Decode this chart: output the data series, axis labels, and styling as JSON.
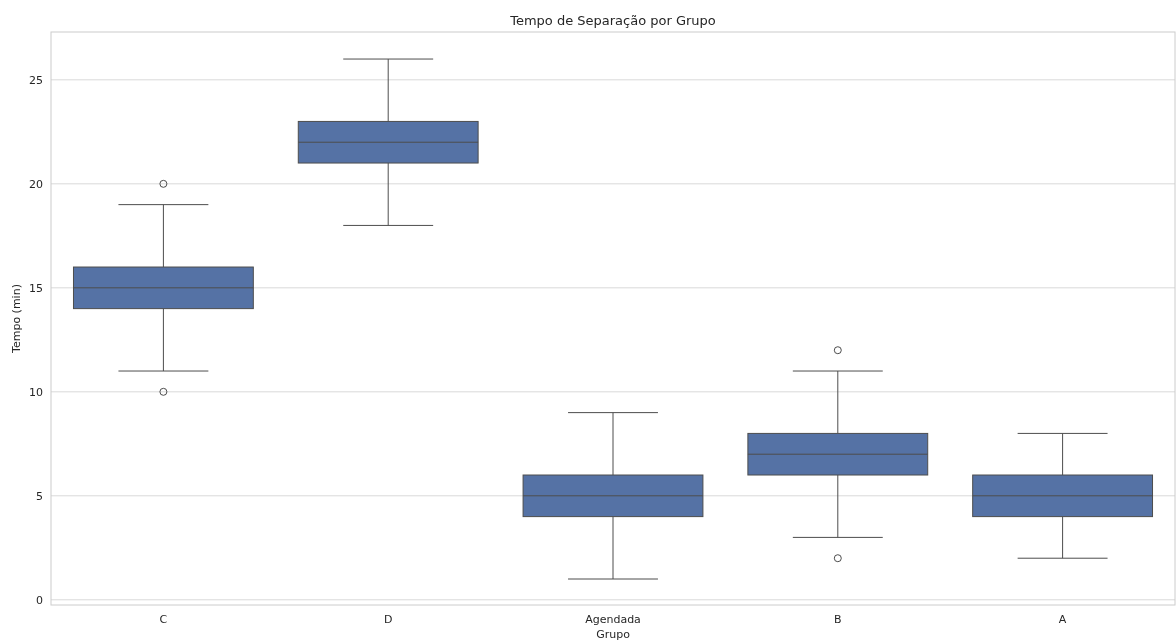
{
  "chart_data": {
    "type": "box",
    "title": "Tempo de Separação por Grupo",
    "xlabel": "Grupo",
    "ylabel": "Tempo (min)",
    "categories": [
      "C",
      "D",
      "Agendada",
      "B",
      "A"
    ],
    "color": "#5572a5",
    "boxes": [
      {
        "low": 11,
        "q1": 14,
        "median": 15,
        "q3": 16,
        "high": 19,
        "outliers": [
          10,
          20
        ]
      },
      {
        "low": 18,
        "q1": 21,
        "median": 22,
        "q3": 23,
        "high": 26
      },
      {
        "low": 1,
        "q1": 4,
        "median": 5,
        "q3": 6,
        "high": 9
      },
      {
        "low": 3,
        "q1": 6,
        "median": 7,
        "q3": 8,
        "high": 11,
        "outliers": [
          2,
          12
        ]
      },
      {
        "low": 2,
        "q1": 4,
        "median": 5,
        "q3": 6,
        "high": 8
      }
    ],
    "ylim": [
      -0.25,
      27.3
    ],
    "yticks": [
      0,
      5,
      10,
      15,
      20,
      25
    ],
    "grid": "y"
  }
}
